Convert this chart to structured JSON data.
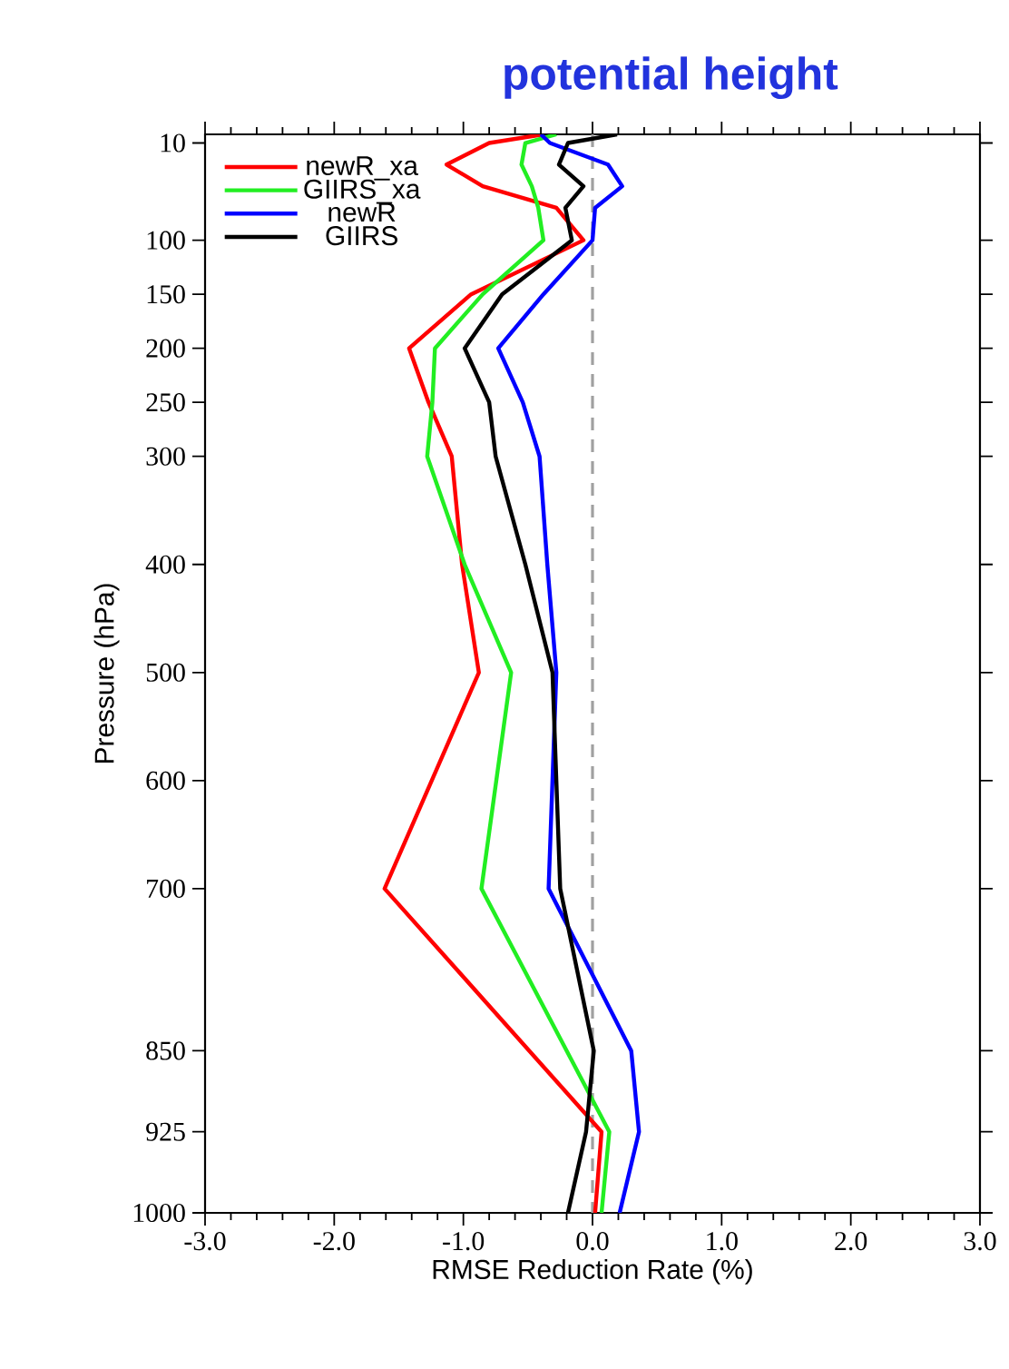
{
  "chart_data": {
    "type": "line",
    "title": "potential height",
    "xlabel": "RMSE Reduction Rate (%)",
    "ylabel": "Pressure (hPa)",
    "orientation": "horizontal",
    "x": [
      2,
      10,
      30,
      50,
      70,
      100,
      150,
      200,
      250,
      300,
      400,
      500,
      700,
      850,
      925,
      1000
    ],
    "series": [
      {
        "name": "newR_xa",
        "color": "#ff0000",
        "values": [
          -0.38,
          -0.8,
          -1.13,
          -0.85,
          -0.28,
          -0.07,
          -0.94,
          -1.42,
          -1.27,
          -1.09,
          -1.01,
          -0.88,
          -1.61,
          -0.49,
          0.07,
          0.02
        ]
      },
      {
        "name": "GIIRS_xa",
        "color": "#22ee22",
        "values": [
          -0.28,
          -0.52,
          -0.55,
          -0.47,
          -0.42,
          -0.38,
          -0.85,
          -1.22,
          -1.24,
          -1.28,
          -0.99,
          -0.63,
          -0.86,
          -0.2,
          0.13,
          0.07
        ]
      },
      {
        "name": "newR",
        "color": "#0000ff",
        "values": [
          -0.4,
          -0.33,
          0.12,
          0.23,
          0.02,
          0.0,
          -0.38,
          -0.73,
          -0.54,
          -0.41,
          -0.35,
          -0.28,
          -0.34,
          0.3,
          0.36,
          0.21
        ]
      },
      {
        "name": "GIIRS",
        "color": "#000000",
        "values": [
          0.19,
          -0.19,
          -0.26,
          -0.07,
          -0.21,
          -0.16,
          -0.7,
          -0.99,
          -0.8,
          -0.75,
          -0.52,
          -0.31,
          -0.25,
          0.01,
          -0.05,
          -0.19
        ]
      }
    ],
    "xlim": [
      -3,
      3
    ],
    "xticks": [
      {
        "value": -3,
        "label": "-3.0"
      },
      {
        "value": -2,
        "label": "-2.0"
      },
      {
        "value": -1,
        "label": "-1.0"
      },
      {
        "value": 0,
        "label": "0.0"
      },
      {
        "value": 1,
        "label": "1.0"
      },
      {
        "value": 2,
        "label": "2.0"
      },
      {
        "value": 3,
        "label": "3.0"
      }
    ],
    "ylim": [
      1000,
      2
    ],
    "yticks": [
      10,
      100,
      150,
      200,
      250,
      300,
      400,
      500,
      600,
      700,
      850,
      925,
      1000
    ],
    "ref_lines": [
      {
        "axis": "x",
        "value": 0,
        "color": "#a0a0a0",
        "line_style": "dashed"
      }
    ],
    "legend": "top left"
  }
}
